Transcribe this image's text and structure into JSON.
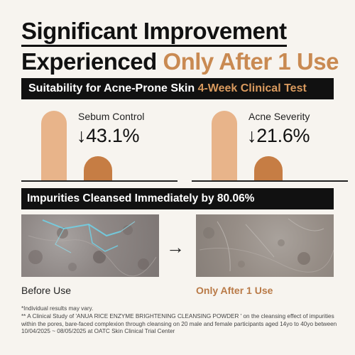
{
  "headline": {
    "line1": "Significant Improvement",
    "line2_prefix": "Experienced ",
    "line2_accent": "Only After 1 Use"
  },
  "band1": {
    "text": "Suitability for Acne-Prone Skin ",
    "accent": "4-Week Clinical Test"
  },
  "metrics": [
    {
      "label": "Sebum Control",
      "value": "↓43.1%"
    },
    {
      "label": "Acne Severity",
      "value": "↓21.6%"
    }
  ],
  "band2": {
    "text": "Impurities Cleansed Immediately by 80.06%"
  },
  "comparison": {
    "arrow": "→",
    "before_caption": "Before Use",
    "after_caption": "Only After 1 Use"
  },
  "notes": {
    "line1": "*Individual results may vary.",
    "line2": "** A Clinical Study of 'ANUA RICE ENZYME BRIGHTENING CLEANSING POWDER ' on the cleansing effect of impurities within the pores, bare-faced complexion through cleansing on 20 male and female participants aged 14yo to 40yo between 10/04/2025 ~ 08/05/2025 at OATC Skin Clinical Trial Center"
  },
  "colors": {
    "accent": "#c98a52",
    "bar_light": "#e8b48a",
    "bar_dark": "#c67d44",
    "band": "#111111"
  }
}
